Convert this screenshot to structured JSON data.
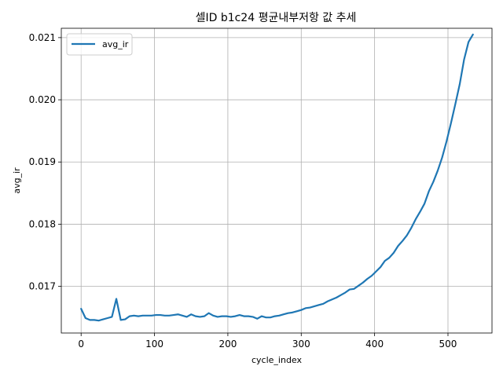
{
  "chart_data": {
    "type": "line",
    "title": "셀ID b1c24 평균내부저항 값 추세",
    "xlabel": "cycle_index",
    "ylabel": "avg_ir",
    "xlim": [
      -27,
      560
    ],
    "ylim": [
      0.01625,
      0.02115
    ],
    "xticks": [
      0,
      100,
      200,
      300,
      400,
      500
    ],
    "xtick_labels": [
      "0",
      "100",
      "200",
      "300",
      "400",
      "500"
    ],
    "yticks": [
      0.017,
      0.018,
      0.019,
      0.02,
      0.021
    ],
    "ytick_labels": [
      "0.017",
      "0.018",
      "0.019",
      "0.020",
      "0.021"
    ],
    "grid": true,
    "legend": {
      "placement": "upper-left"
    },
    "colors": {
      "series": "#1f77b4",
      "grid": "#b0b0b0"
    },
    "series": [
      {
        "name": "avg_ir",
        "x": [
          0,
          6,
          12,
          18,
          24,
          30,
          36,
          42,
          48,
          54,
          60,
          66,
          72,
          78,
          84,
          90,
          96,
          102,
          108,
          114,
          120,
          126,
          132,
          138,
          144,
          150,
          156,
          162,
          168,
          174,
          180,
          186,
          192,
          198,
          204,
          210,
          216,
          222,
          228,
          234,
          240,
          246,
          252,
          258,
          264,
          270,
          276,
          282,
          288,
          294,
          300,
          306,
          312,
          318,
          324,
          330,
          336,
          342,
          348,
          354,
          360,
          366,
          372,
          378,
          384,
          390,
          396,
          402,
          408,
          414,
          420,
          426,
          432,
          438,
          444,
          450,
          456,
          462,
          468,
          474,
          480,
          486,
          492,
          498,
          504,
          510,
          516,
          522,
          528,
          534
        ],
        "y": [
          0.01664,
          0.01649,
          0.01646,
          0.01646,
          0.01645,
          0.01647,
          0.01649,
          0.01651,
          0.0168,
          0.01646,
          0.01647,
          0.01652,
          0.01653,
          0.01652,
          0.01653,
          0.01653,
          0.01653,
          0.01654,
          0.01654,
          0.01653,
          0.01653,
          0.01654,
          0.01655,
          0.01653,
          0.01651,
          0.01655,
          0.01652,
          0.01651,
          0.01652,
          0.01657,
          0.01653,
          0.01651,
          0.01652,
          0.01652,
          0.01651,
          0.01652,
          0.01654,
          0.01652,
          0.01652,
          0.01651,
          0.01648,
          0.01652,
          0.0165,
          0.0165,
          0.01652,
          0.01653,
          0.01655,
          0.01657,
          0.01658,
          0.0166,
          0.01662,
          0.01665,
          0.01666,
          0.01668,
          0.0167,
          0.01672,
          0.01676,
          0.01679,
          0.01682,
          0.01686,
          0.0169,
          0.01695,
          0.01696,
          0.01701,
          0.01706,
          0.01712,
          0.01717,
          0.01724,
          0.01731,
          0.01741,
          0.01746,
          0.01754,
          0.01765,
          0.01773,
          0.01782,
          0.01794,
          0.01808,
          0.0182,
          0.01833,
          0.01853,
          0.01868,
          0.01886,
          0.01907,
          0.01933,
          0.01962,
          0.01993,
          0.02025,
          0.02065,
          0.02093,
          0.02105
        ]
      }
    ]
  }
}
